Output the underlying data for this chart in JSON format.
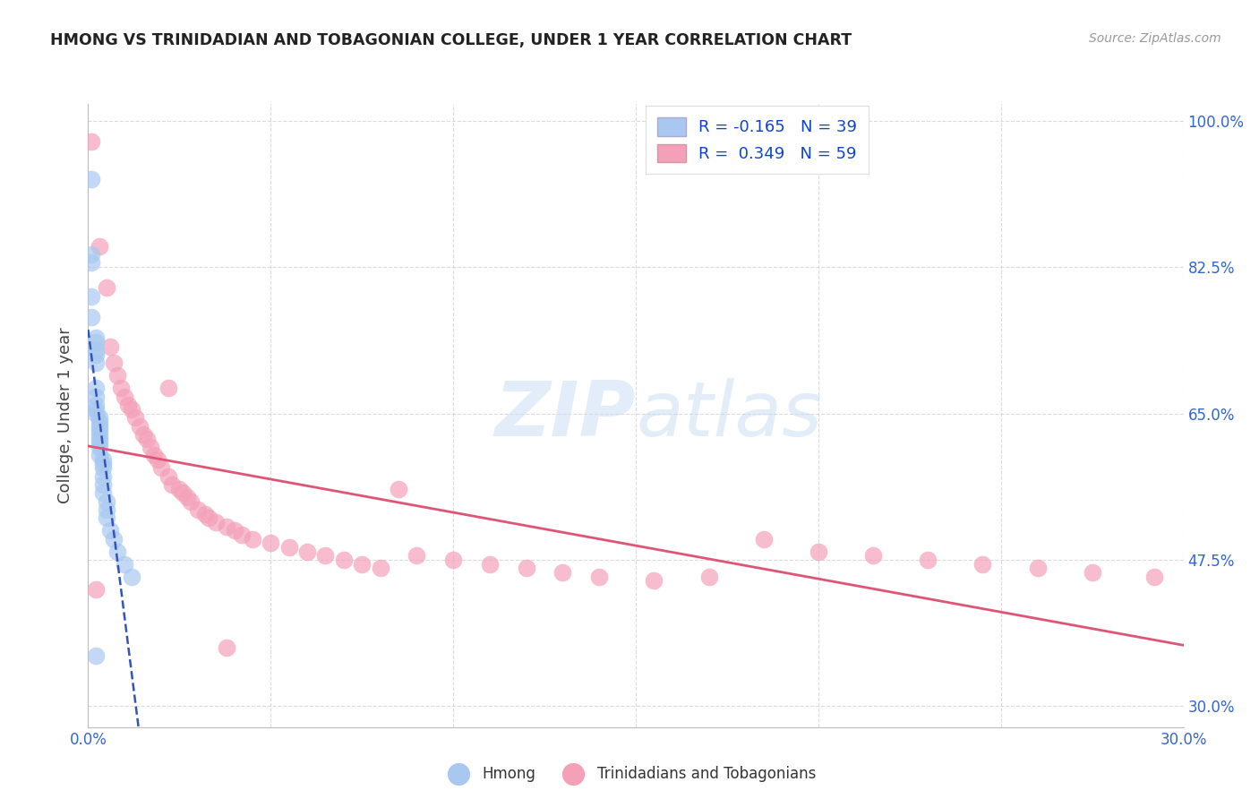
{
  "title": "HMONG VS TRINIDADIAN AND TOBAGONIAN COLLEGE, UNDER 1 YEAR CORRELATION CHART",
  "source": "Source: ZipAtlas.com",
  "ylabel_label": "College, Under 1 year",
  "x_tick_positions": [
    0.0,
    0.05,
    0.1,
    0.15,
    0.2,
    0.25,
    0.3
  ],
  "x_tick_labels": [
    "0.0%",
    "",
    "",
    "",
    "",
    "",
    "30.0%"
  ],
  "y_tick_positions": [
    0.3,
    0.475,
    0.65,
    0.825,
    1.0
  ],
  "y_tick_labels": [
    "30.0%",
    "47.5%",
    "65.0%",
    "82.5%",
    "100.0%"
  ],
  "xlim": [
    0.0,
    0.3
  ],
  "ylim": [
    0.275,
    1.02
  ],
  "hmong_R": -0.165,
  "hmong_N": 39,
  "tnt_R": 0.349,
  "tnt_N": 59,
  "hmong_color": "#a8c8f0",
  "tnt_color": "#f4a0b8",
  "hmong_line_color": "#3355bb",
  "tnt_line_color": "#e05575",
  "watermark": "ZIPatlas",
  "grid_color": "#cccccc",
  "hmong_x": [
    0.001,
    0.001,
    0.001,
    0.001,
    0.001,
    0.002,
    0.002,
    0.002,
    0.002,
    0.002,
    0.002,
    0.002,
    0.002,
    0.002,
    0.002,
    0.003,
    0.003,
    0.003,
    0.003,
    0.003,
    0.003,
    0.003,
    0.003,
    0.003,
    0.004,
    0.004,
    0.004,
    0.004,
    0.004,
    0.004,
    0.005,
    0.005,
    0.005,
    0.006,
    0.007,
    0.008,
    0.01,
    0.012,
    0.002
  ],
  "hmong_y": [
    0.93,
    0.84,
    0.83,
    0.79,
    0.765,
    0.74,
    0.735,
    0.725,
    0.72,
    0.71,
    0.68,
    0.67,
    0.66,
    0.655,
    0.65,
    0.645,
    0.64,
    0.635,
    0.63,
    0.625,
    0.62,
    0.615,
    0.61,
    0.6,
    0.595,
    0.59,
    0.585,
    0.575,
    0.565,
    0.555,
    0.545,
    0.535,
    0.525,
    0.51,
    0.5,
    0.485,
    0.47,
    0.455,
    0.36
  ],
  "tnt_x": [
    0.001,
    0.003,
    0.005,
    0.006,
    0.007,
    0.008,
    0.009,
    0.01,
    0.011,
    0.012,
    0.013,
    0.014,
    0.015,
    0.016,
    0.017,
    0.018,
    0.019,
    0.02,
    0.022,
    0.023,
    0.025,
    0.026,
    0.027,
    0.028,
    0.03,
    0.032,
    0.033,
    0.035,
    0.038,
    0.04,
    0.042,
    0.045,
    0.05,
    0.055,
    0.06,
    0.065,
    0.07,
    0.075,
    0.08,
    0.085,
    0.09,
    0.1,
    0.11,
    0.12,
    0.13,
    0.14,
    0.155,
    0.17,
    0.185,
    0.2,
    0.215,
    0.23,
    0.245,
    0.26,
    0.275,
    0.292,
    0.002,
    0.022,
    0.038
  ],
  "tnt_y": [
    0.975,
    0.85,
    0.8,
    0.73,
    0.71,
    0.695,
    0.68,
    0.67,
    0.66,
    0.655,
    0.645,
    0.635,
    0.625,
    0.62,
    0.61,
    0.6,
    0.595,
    0.585,
    0.575,
    0.565,
    0.56,
    0.555,
    0.55,
    0.545,
    0.535,
    0.53,
    0.525,
    0.52,
    0.515,
    0.51,
    0.505,
    0.5,
    0.495,
    0.49,
    0.485,
    0.48,
    0.475,
    0.47,
    0.465,
    0.56,
    0.48,
    0.475,
    0.47,
    0.465,
    0.46,
    0.455,
    0.45,
    0.455,
    0.5,
    0.485,
    0.48,
    0.475,
    0.47,
    0.465,
    0.46,
    0.455,
    0.44,
    0.68,
    0.37
  ]
}
